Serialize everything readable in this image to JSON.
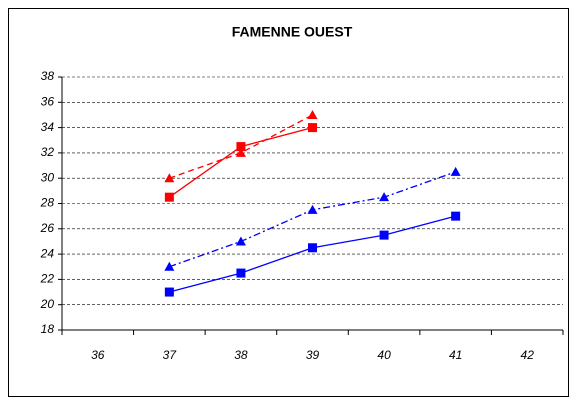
{
  "chart_data": {
    "type": "line",
    "title": "FAMENNE OUEST",
    "categories": [
      "36",
      "37",
      "38",
      "39",
      "40",
      "41",
      "42"
    ],
    "series": [
      {
        "color": "#ff0000",
        "marker": "square",
        "dash": "solid",
        "values": [
          null,
          28.5,
          32.5,
          34,
          null,
          null,
          null
        ]
      },
      {
        "color": "#ff0000",
        "marker": "triangle",
        "dash": "dash",
        "values": [
          null,
          30,
          32,
          35,
          null,
          null,
          null
        ]
      },
      {
        "color": "#0000ff",
        "marker": "square",
        "dash": "solid",
        "values": [
          null,
          21,
          22.5,
          24.5,
          25.5,
          27,
          null
        ]
      },
      {
        "color": "#0000ff",
        "marker": "triangle",
        "dash": "dashdot",
        "values": [
          null,
          23,
          25,
          27.5,
          28.5,
          30.5,
          null
        ]
      }
    ],
    "ylim": [
      18,
      38
    ],
    "yticks": [
      18,
      20,
      22,
      24,
      26,
      28,
      30,
      32,
      34,
      36,
      38
    ],
    "grid": true
  }
}
